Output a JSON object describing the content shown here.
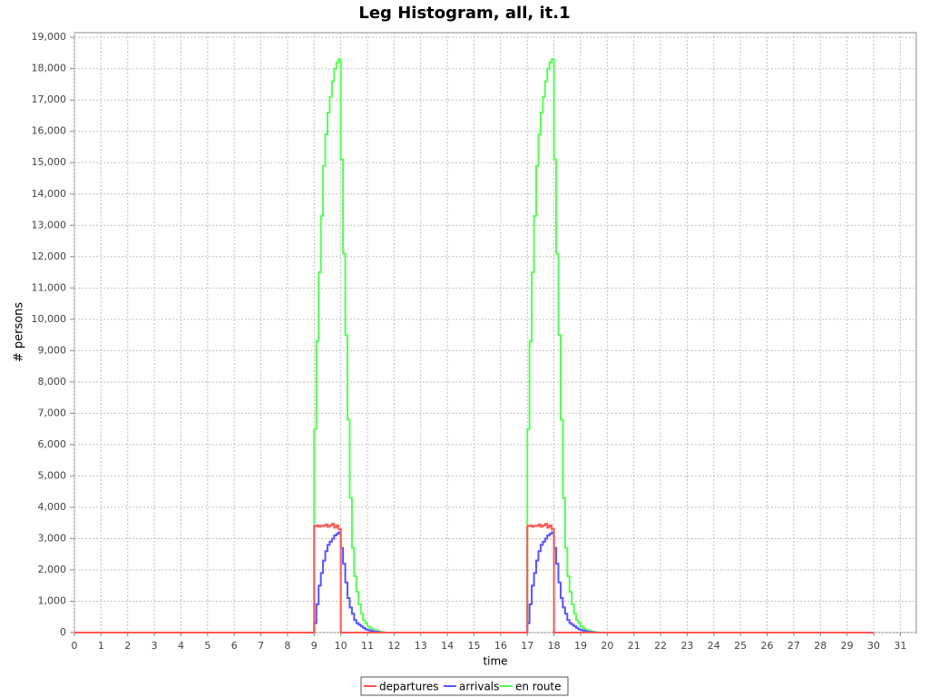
{
  "chart_data": {
    "type": "line",
    "step": true,
    "title": "Leg Histogram, all, it.1",
    "x_label": "time",
    "y_label": "# persons",
    "x": [
      0,
      9,
      9.083,
      9.167,
      9.25,
      9.333,
      9.417,
      9.5,
      9.583,
      9.667,
      9.75,
      9.833,
      9.917,
      10,
      10.083,
      10.167,
      10.25,
      10.333,
      10.417,
      10.5,
      10.583,
      10.667,
      10.75,
      10.833,
      10.917,
      11,
      11.083,
      11.167,
      11.25,
      11.333,
      11.417,
      11.5,
      11.583,
      11.667,
      11.75,
      11.833,
      11.917,
      12,
      17,
      17.083,
      17.167,
      17.25,
      17.333,
      17.417,
      17.5,
      17.583,
      17.667,
      17.75,
      17.833,
      17.917,
      18,
      18.083,
      18.167,
      18.25,
      18.333,
      18.417,
      18.5,
      18.583,
      18.667,
      18.75,
      18.833,
      18.917,
      19,
      19.083,
      19.167,
      19.25,
      19.333,
      19.417,
      19.5,
      19.583,
      19.667,
      19.75,
      19.833,
      19.917,
      20,
      30
    ],
    "series": [
      {
        "name": "departures",
        "color": "#ff5555",
        "values": [
          0,
          3400,
          3420,
          3380,
          3410,
          3400,
          3450,
          3380,
          3420,
          3470,
          3350,
          3420,
          3300,
          0,
          0,
          0,
          0,
          0,
          0,
          0,
          0,
          0,
          0,
          0,
          0,
          0,
          0,
          0,
          0,
          0,
          0,
          0,
          0,
          0,
          0,
          0,
          0,
          0,
          3400,
          3420,
          3380,
          3410,
          3400,
          3450,
          3380,
          3420,
          3470,
          3350,
          3420,
          3300,
          0,
          0,
          0,
          0,
          0,
          0,
          0,
          0,
          0,
          0,
          0,
          0,
          0,
          0,
          0,
          0,
          0,
          0,
          0,
          0,
          0,
          0,
          0,
          0,
          0,
          0
        ]
      },
      {
        "name": "arrivals",
        "color": "#5555ff",
        "values": [
          0,
          300,
          900,
          1500,
          1900,
          2300,
          2600,
          2800,
          2900,
          3000,
          3100,
          3150,
          3200,
          2700,
          2200,
          1600,
          1100,
          800,
          600,
          400,
          300,
          250,
          200,
          150,
          100,
          80,
          60,
          40,
          30,
          20,
          10,
          0,
          0,
          0,
          0,
          0,
          0,
          0,
          300,
          900,
          1500,
          1900,
          2300,
          2600,
          2800,
          2900,
          3000,
          3100,
          3150,
          3200,
          2700,
          2200,
          1600,
          1100,
          800,
          600,
          400,
          300,
          250,
          200,
          150,
          100,
          80,
          60,
          40,
          30,
          20,
          10,
          0,
          0,
          0,
          0,
          0,
          0,
          0,
          0
        ]
      },
      {
        "name": "en route",
        "color": "#55ff55",
        "values": [
          0,
          6500,
          9300,
          11500,
          13300,
          14900,
          15900,
          16600,
          17100,
          17600,
          18000,
          18200,
          18300,
          15100,
          12100,
          9500,
          6800,
          4300,
          2700,
          1800,
          1300,
          900,
          600,
          400,
          300,
          200,
          150,
          100,
          70,
          50,
          30,
          20,
          10,
          0,
          0,
          0,
          0,
          0,
          6500,
          9300,
          11500,
          13300,
          14900,
          15900,
          16600,
          17100,
          17600,
          18000,
          18200,
          18300,
          15100,
          12100,
          9500,
          6800,
          4300,
          2700,
          1800,
          1300,
          900,
          600,
          400,
          300,
          200,
          150,
          100,
          70,
          50,
          30,
          20,
          10,
          0,
          0,
          0,
          0,
          0,
          0
        ]
      }
    ],
    "xlim": [
      0,
      31.6
    ],
    "ylim": [
      0,
      19150
    ],
    "xticks": [
      0,
      1,
      2,
      3,
      4,
      5,
      6,
      7,
      8,
      9,
      10,
      11,
      12,
      13,
      14,
      15,
      16,
      17,
      18,
      19,
      20,
      21,
      22,
      23,
      24,
      25,
      26,
      27,
      28,
      29,
      30,
      31
    ],
    "yticks": [
      0,
      {
        "value": 1000,
        "label": "1,000"
      },
      {
        "value": 2000,
        "label": "2,000"
      },
      {
        "value": 3000,
        "label": "3,000"
      },
      {
        "value": 4000,
        "label": "4,000"
      },
      {
        "value": 5000,
        "label": "5,000"
      },
      {
        "value": 6000,
        "label": "6,000"
      },
      {
        "value": 7000,
        "label": "7,000"
      },
      {
        "value": 8000,
        "label": "8,000"
      },
      {
        "value": 9000,
        "label": "9,000"
      },
      {
        "value": 10000,
        "label": "10,000"
      },
      {
        "value": 11000,
        "label": "11,000"
      },
      {
        "value": 12000,
        "label": "12,000"
      },
      {
        "value": 13000,
        "label": "13,000"
      },
      {
        "value": 14000,
        "label": "14,000"
      },
      {
        "value": 15000,
        "label": "15,000"
      },
      {
        "value": 16000,
        "label": "16,000"
      },
      {
        "value": 17000,
        "label": "17,000"
      },
      {
        "value": 18000,
        "label": "18,000"
      },
      {
        "value": 19000,
        "label": "19,000"
      }
    ],
    "grid": true,
    "legend": "bottom"
  }
}
